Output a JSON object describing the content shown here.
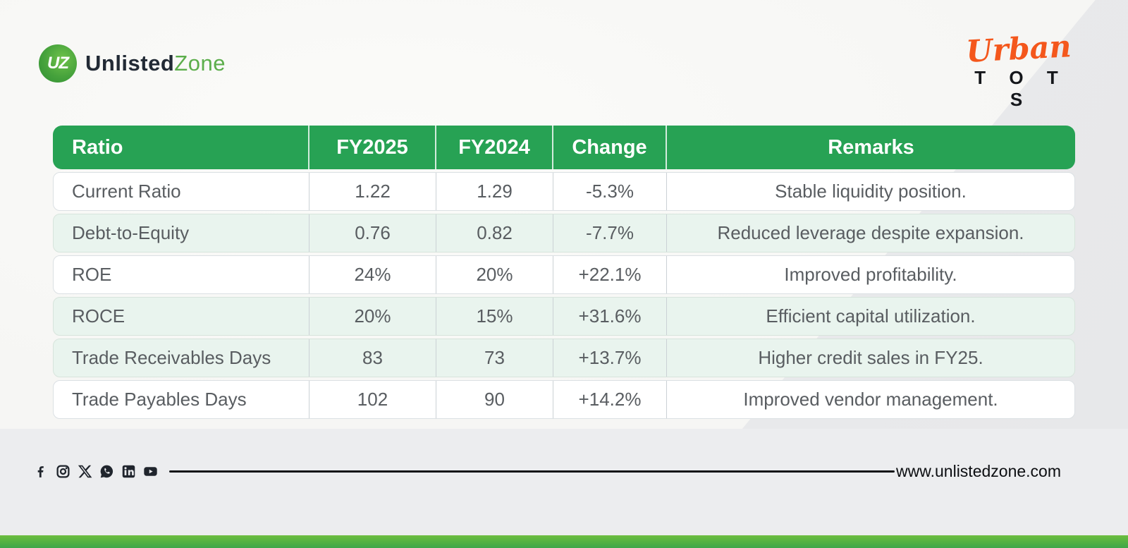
{
  "brand": {
    "monogram": "UZ",
    "name_primary": "Unlisted",
    "name_secondary": "Zone"
  },
  "company": {
    "line1": "Urban",
    "line2": "T O T S"
  },
  "table": {
    "columns": [
      "Ratio",
      "FY2025",
      "FY2024",
      "Change",
      "Remarks"
    ],
    "rows": [
      {
        "ratio": "Current Ratio",
        "fy2025": "1.22",
        "fy2024": "1.29",
        "change": "-5.3%",
        "remarks": "Stable liquidity position."
      },
      {
        "ratio": "Debt-to-Equity",
        "fy2025": "0.76",
        "fy2024": "0.82",
        "change": "-7.7%",
        "remarks": "Reduced leverage despite expansion."
      },
      {
        "ratio": "ROE",
        "fy2025": "24%",
        "fy2024": "20%",
        "change": "+22.1%",
        "remarks": "Improved profitability."
      },
      {
        "ratio": "ROCE",
        "fy2025": "20%",
        "fy2024": "15%",
        "change": "+31.6%",
        "remarks": "Efficient capital utilization."
      },
      {
        "ratio": "Trade Receivables Days",
        "fy2025": "83",
        "fy2024": "73",
        "change": "+13.7%",
        "remarks": "Higher credit sales in FY25."
      },
      {
        "ratio": "Trade Payables Days",
        "fy2025": "102",
        "fy2024": "90",
        "change": "+14.2%",
        "remarks": "Improved vendor management."
      }
    ],
    "tinted_rows": [
      false,
      true,
      false,
      true,
      true,
      false
    ]
  },
  "footer": {
    "website": "www.unlistedzone.com",
    "social_icons": [
      "facebook",
      "instagram",
      "x",
      "whatsapp",
      "linkedin",
      "youtube"
    ]
  },
  "colors": {
    "header_green": "#27a254",
    "row_tint_green": "#e9f4ee",
    "bottom_bar_green": "#52b143",
    "logo_circle_green": "#46a23c",
    "brand_zone_green": "#5cae4b",
    "urban_orange": "#f4571c",
    "text_grey": "#595d61"
  }
}
